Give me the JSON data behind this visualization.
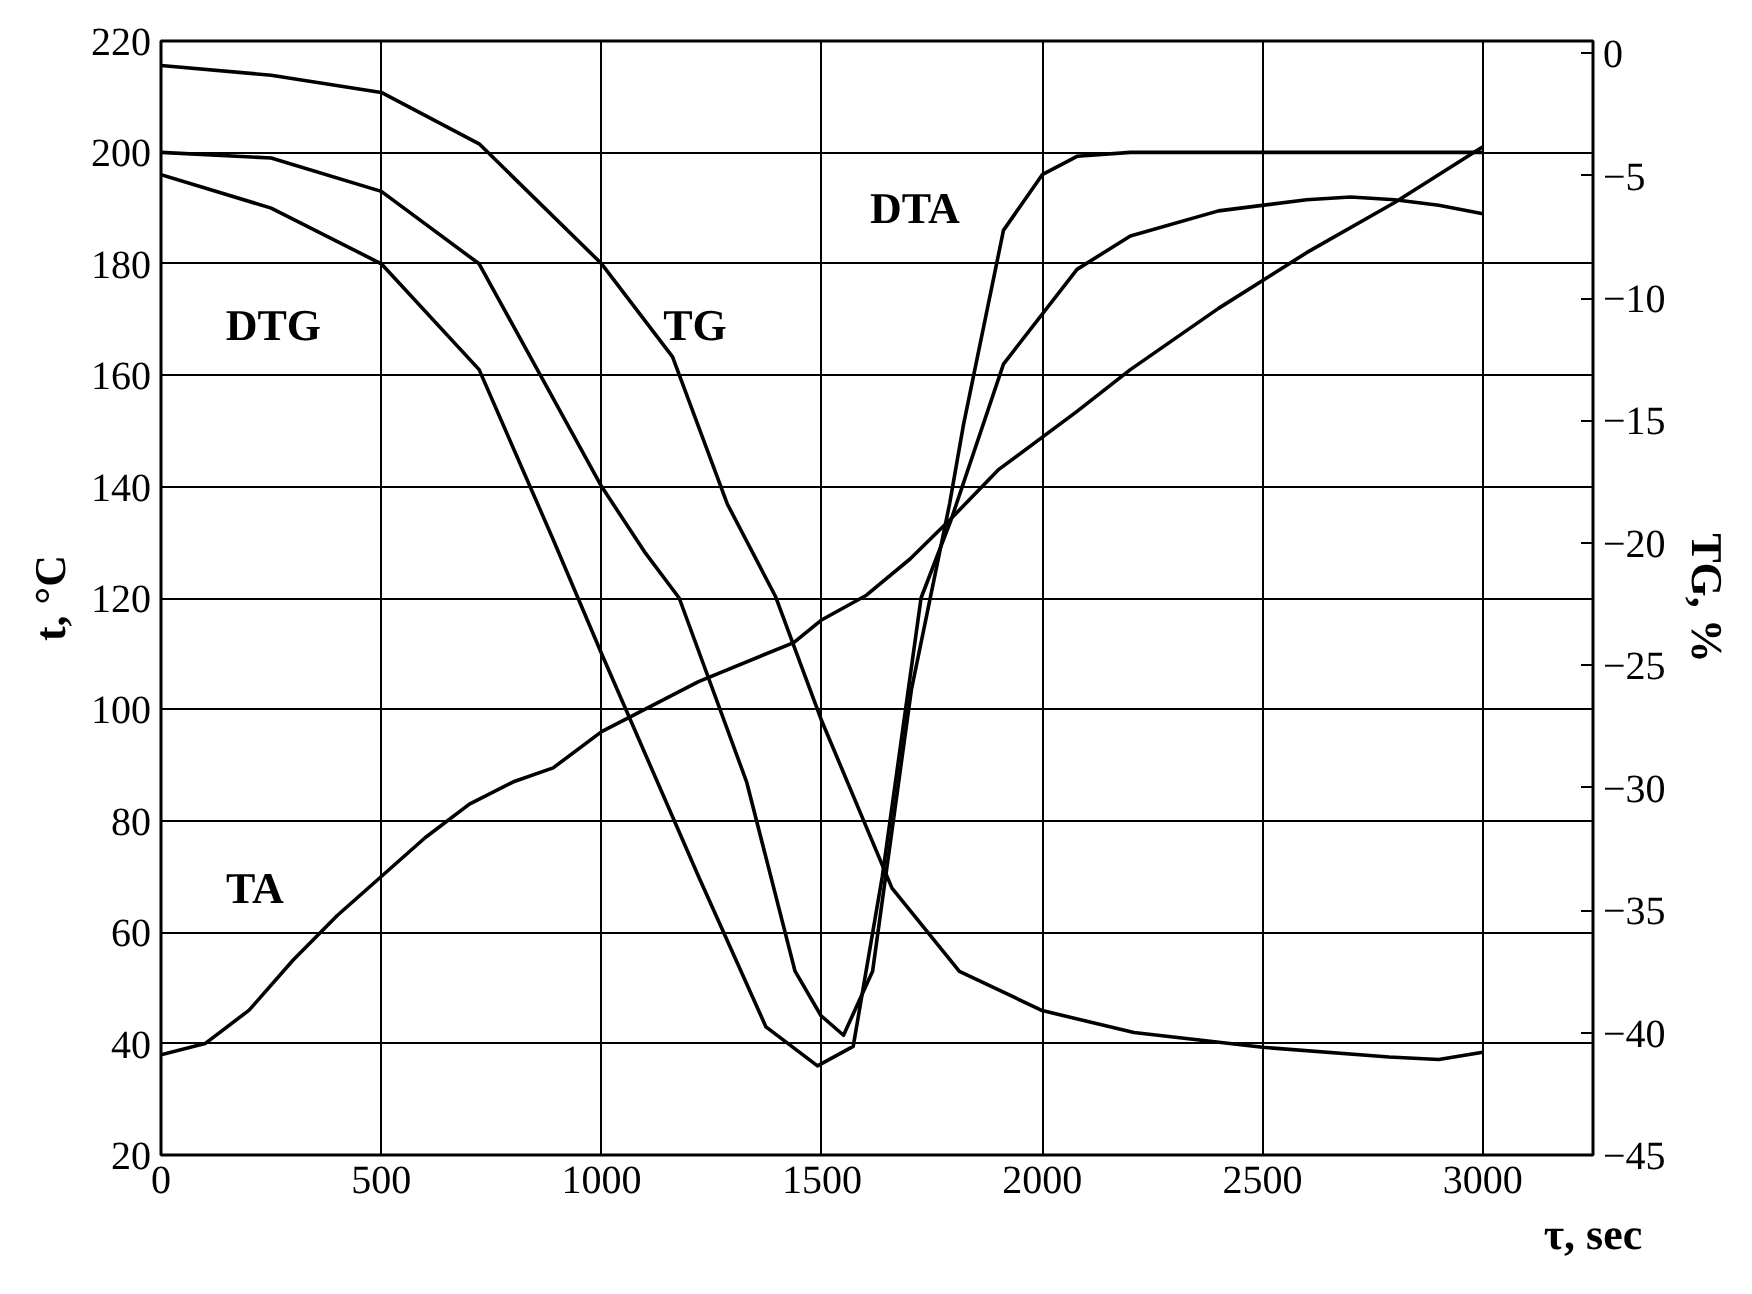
{
  "chart_data": {
    "type": "line",
    "xlabel": "τ, sec",
    "ylabel": "t, °C",
    "y2label": "TG, %",
    "xlim": [
      0,
      3250
    ],
    "xticks": [
      0,
      500,
      1000,
      1500,
      2000,
      2500,
      3000
    ],
    "ylim": [
      20,
      220
    ],
    "yticks": [
      20,
      40,
      60,
      80,
      100,
      120,
      140,
      160,
      180,
      200,
      220
    ],
    "y2lim": [
      -45,
      0.5
    ],
    "y2ticks": [
      -45,
      -40,
      -35,
      -30,
      -25,
      -20,
      -15,
      -10,
      -5,
      0
    ],
    "grid": true,
    "marker": "none",
    "line_style": "solid",
    "series": [
      {
        "name": "TA",
        "color": "#000000",
        "x": [
          0,
          100,
          200,
          300,
          400,
          500,
          600,
          700,
          800,
          890,
          1000,
          1220,
          1436,
          1498,
          1601,
          1700,
          1790,
          1900,
          2079,
          2200,
          2400,
          2600,
          2800,
          3000
        ],
        "values": [
          38,
          40,
          46,
          55,
          63,
          70,
          77,
          83,
          87,
          89.5,
          96,
          105,
          112,
          116,
          120.5,
          127,
          134,
          143,
          153.5,
          161,
          172,
          182,
          191,
          201
        ]
      },
      {
        "name": "TG",
        "color": "#000000",
        "axis": "y2",
        "x": [
          0,
          250,
          500,
          722,
          1000,
          1161,
          1285,
          1395,
          1498,
          1659,
          1812,
          2000,
          2208,
          2500,
          2787,
          2900,
          3000
        ],
        "values": [
          -0.5,
          -0.9,
          -1.6,
          -3.7,
          -8.6,
          -12.4,
          -18.4,
          -22.2,
          -27.2,
          -34.1,
          -37.5,
          -39.1,
          -40,
          -40.6,
          -41,
          -41.1,
          -40.8
        ]
      },
      {
        "name": "DTG",
        "color": "#000000",
        "x": [
          0,
          250,
          500,
          722,
          890,
          1000,
          1220,
          1373,
          1490,
          1571,
          1637,
          1725,
          1793,
          1912,
          2079,
          2200,
          2400,
          2600,
          2700,
          2800,
          2900,
          3000
        ],
        "values": [
          196,
          190,
          180,
          161,
          130.5,
          110,
          70,
          43,
          36,
          39.5,
          70,
          120,
          134,
          162,
          179,
          185,
          189.5,
          191.5,
          192,
          191.5,
          190.5,
          189
        ]
      },
      {
        "name": "DTA",
        "color": "#000000",
        "x": [
          0,
          250,
          500,
          722,
          1000,
          1100,
          1176,
          1329,
          1439,
          1498,
          1549,
          1615,
          1703,
          1790,
          1821,
          1912,
          2000,
          2079,
          2200,
          3000
        ],
        "values": [
          200,
          199,
          193,
          180,
          140,
          128,
          120,
          87,
          53,
          45,
          41.5,
          53,
          103.5,
          137,
          151,
          186,
          196,
          199.3,
          200,
          200
        ]
      }
    ]
  }
}
